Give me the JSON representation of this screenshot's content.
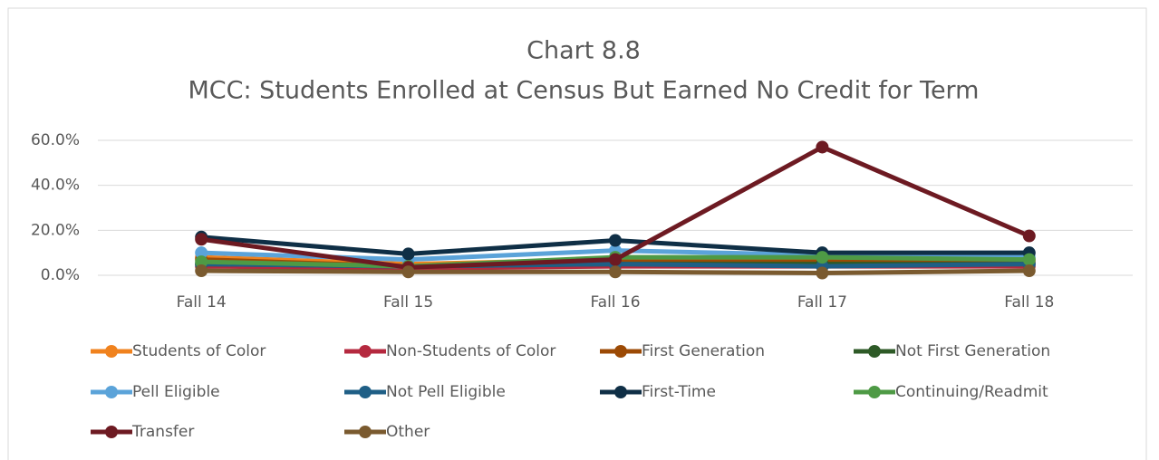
{
  "chart_data": {
    "type": "line",
    "title": "Chart 8.8",
    "subtitle": "MCC: Students Enrolled at Census But Earned No Credit for Term",
    "categories": [
      "Fall 14",
      "Fall 15",
      "Fall 16",
      "Fall 17",
      "Fall 18"
    ],
    "ylim": [
      0,
      60
    ],
    "yticks": [
      {
        "value": 0,
        "label": "0.0%"
      },
      {
        "value": 20,
        "label": "20.0%"
      },
      {
        "value": 40,
        "label": "40.0%"
      },
      {
        "value": 60,
        "label": "60.0%"
      }
    ],
    "grid": true,
    "legend": "bottom",
    "series": [
      {
        "name": "Students of Color",
        "color": "#f0821e",
        "values": [
          8,
          5,
          7,
          7,
          7
        ]
      },
      {
        "name": "Non-Students of Color",
        "color": "#b5293f",
        "values": [
          4,
          3,
          4,
          4,
          4
        ]
      },
      {
        "name": "First Generation",
        "color": "#9c4a05",
        "values": [
          7,
          4,
          6,
          6,
          6
        ]
      },
      {
        "name": "Not First Generation",
        "color": "#2e5a27",
        "values": [
          5,
          4,
          5,
          5,
          5
        ]
      },
      {
        "name": "Pell Eligible",
        "color": "#5ba3d9",
        "values": [
          10,
          7,
          11,
          9,
          8
        ]
      },
      {
        "name": "Not Pell Eligible",
        "color": "#1f5f86",
        "values": [
          5,
          4,
          5,
          4,
          5
        ]
      },
      {
        "name": "First-Time",
        "color": "#0f2f46",
        "values": [
          17,
          9.5,
          15.5,
          10,
          10
        ]
      },
      {
        "name": "Continuing/Readmit",
        "color": "#4e9a45",
        "values": [
          6,
          4,
          8,
          8,
          7
        ]
      },
      {
        "name": "Transfer",
        "color": "#6d1a22",
        "values": [
          16,
          3.5,
          7,
          57,
          17.5
        ]
      },
      {
        "name": "Other",
        "color": "#7a5a2f",
        "values": [
          2,
          1.5,
          1.5,
          1,
          2
        ]
      }
    ]
  }
}
